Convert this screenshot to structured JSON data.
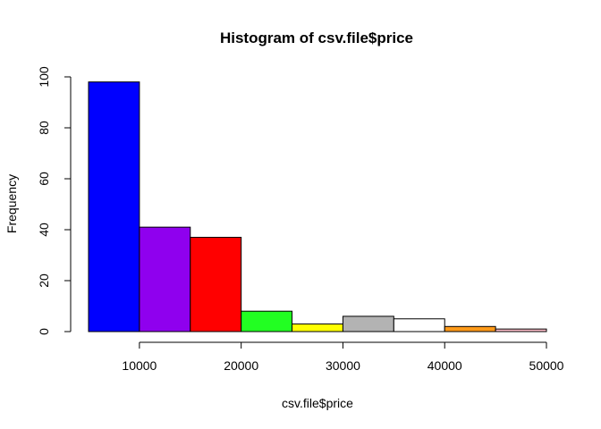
{
  "chart_data": {
    "type": "bar",
    "title": "Histogram of csv.file$price",
    "xlabel": "csv.file$price",
    "ylabel": "Frequency",
    "bins": [
      {
        "start": 5000,
        "end": 10000,
        "count": 98,
        "color": "#0000FF"
      },
      {
        "start": 10000,
        "end": 15000,
        "count": 41,
        "color": "#8F00EE"
      },
      {
        "start": 15000,
        "end": 20000,
        "count": 37,
        "color": "#FF0000"
      },
      {
        "start": 20000,
        "end": 25000,
        "count": 8,
        "color": "#22FF22"
      },
      {
        "start": 25000,
        "end": 30000,
        "count": 3,
        "color": "#FFFF00"
      },
      {
        "start": 30000,
        "end": 35000,
        "count": 6,
        "color": "#B3B3B3"
      },
      {
        "start": 35000,
        "end": 40000,
        "count": 5,
        "color": "#FFFFFF"
      },
      {
        "start": 40000,
        "end": 45000,
        "count": 2,
        "color": "#FF9A1A"
      },
      {
        "start": 45000,
        "end": 50000,
        "count": 1,
        "color": "#FFBFCB"
      }
    ],
    "x_ticks": [
      10000,
      20000,
      30000,
      40000,
      50000
    ],
    "x_tick_labels": [
      "10000",
      "20000",
      "30000",
      "40000",
      "50000"
    ],
    "y_ticks": [
      0,
      20,
      40,
      60,
      80,
      100
    ],
    "y_tick_labels": [
      "0",
      "20",
      "40",
      "60",
      "80",
      "100"
    ],
    "xlim": [
      5000,
      50000
    ],
    "ylim": [
      0,
      100
    ],
    "grid": false,
    "legend": "none"
  }
}
